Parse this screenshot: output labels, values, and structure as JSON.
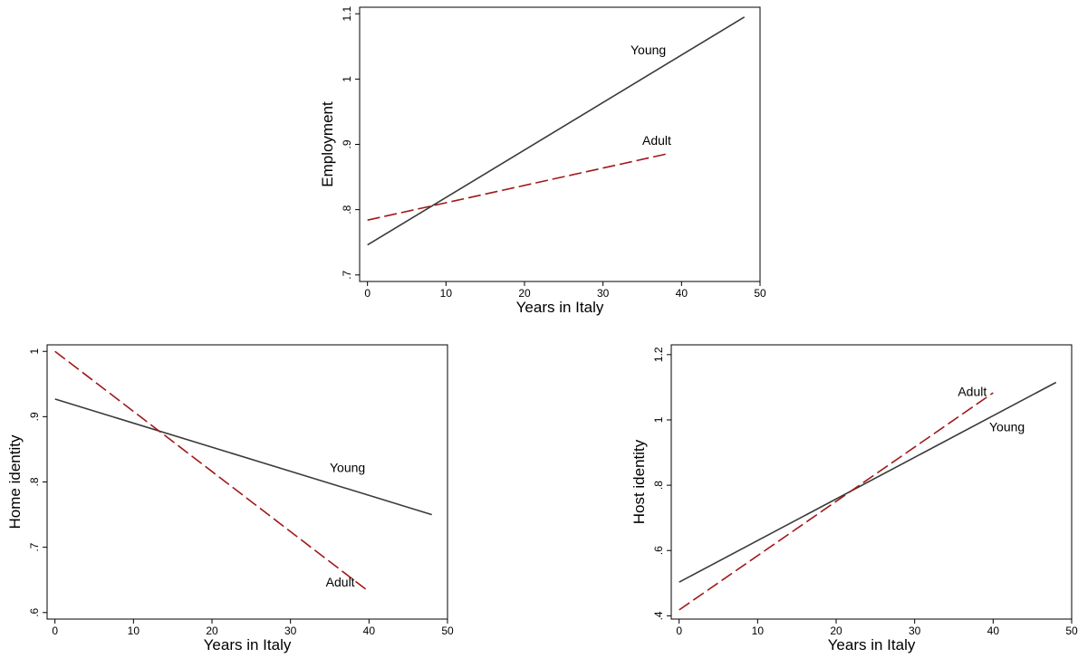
{
  "chart_data": [
    {
      "type": "line",
      "title": "",
      "xlabel": "Years in Italy",
      "ylabel": "Employment",
      "xlim": [
        -1,
        50
      ],
      "ylim": [
        0.69,
        1.11
      ],
      "xticks": [
        0,
        10,
        20,
        30,
        40,
        50
      ],
      "yticks": [
        0.7,
        0.8,
        0.9,
        1.0,
        1.1
      ],
      "ytick_labels": [
        ".7",
        ".8",
        ".9",
        "1",
        "1.1"
      ],
      "grid": false,
      "series": [
        {
          "name": "Young",
          "x": [
            0,
            48
          ],
          "y": [
            0.746,
            1.095
          ],
          "style": "solid",
          "color": "#3a3a3a",
          "label_at": [
            33.5,
            1.038
          ]
        },
        {
          "name": "Adult",
          "x": [
            0,
            38
          ],
          "y": [
            0.784,
            0.885
          ],
          "style": "dashed",
          "color": "#a01818",
          "label_at": [
            35,
            0.899
          ]
        }
      ]
    },
    {
      "type": "line",
      "title": "",
      "xlabel": "Years in Italy",
      "ylabel": "Home identity",
      "xlim": [
        -1,
        50
      ],
      "ylim": [
        0.59,
        1.01
      ],
      "xticks": [
        0,
        10,
        20,
        30,
        40,
        50
      ],
      "yticks": [
        0.6,
        0.7,
        0.8,
        0.9,
        1.0
      ],
      "ytick_labels": [
        ".6",
        ".7",
        ".8",
        ".9",
        "1"
      ],
      "grid": false,
      "series": [
        {
          "name": "Young",
          "x": [
            0,
            48
          ],
          "y": [
            0.927,
            0.75
          ],
          "style": "solid",
          "color": "#3a3a3a",
          "label_at": [
            35,
            0.815
          ]
        },
        {
          "name": "Adult",
          "x": [
            0,
            40
          ],
          "y": [
            1.0,
            0.632
          ],
          "style": "dashed",
          "color": "#a01818",
          "label_at": [
            34.5,
            0.64
          ]
        }
      ]
    },
    {
      "type": "line",
      "title": "",
      "xlabel": "Years in Italy",
      "ylabel": "Host identity",
      "xlim": [
        -1,
        50
      ],
      "ylim": [
        0.39,
        1.23
      ],
      "xticks": [
        0,
        10,
        20,
        30,
        40,
        50
      ],
      "yticks": [
        0.4,
        0.6,
        0.8,
        1.0,
        1.2
      ],
      "ytick_labels": [
        ".4",
        ".6",
        ".8",
        "1",
        "1.2"
      ],
      "grid": false,
      "series": [
        {
          "name": "Young",
          "x": [
            0,
            48
          ],
          "y": [
            0.503,
            1.115
          ],
          "style": "solid",
          "color": "#3a3a3a",
          "label_at": [
            39.5,
            0.965
          ]
        },
        {
          "name": "Adult",
          "x": [
            0,
            40
          ],
          "y": [
            0.418,
            1.083
          ],
          "style": "dashed",
          "color": "#a01818",
          "label_at": [
            35.5,
            1.074
          ]
        }
      ]
    }
  ]
}
